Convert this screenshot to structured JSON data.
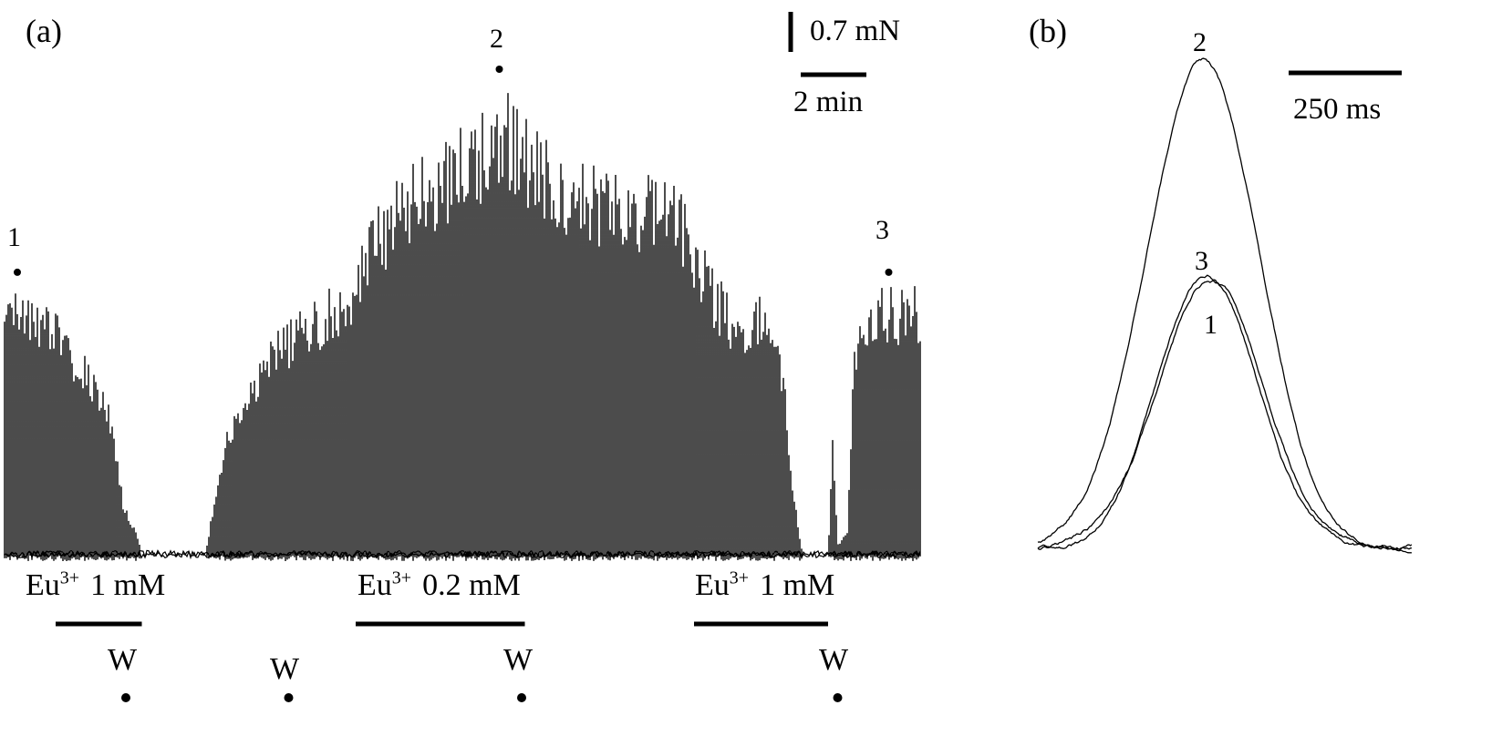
{
  "figure": {
    "panel_a_label": "(a)",
    "panel_b_label": "(b)",
    "colors": {
      "trace": "#000000",
      "background": "#ffffff"
    }
  },
  "panel_a": {
    "scalebar_force": "0.7 mN",
    "scalebar_time": "2 min",
    "point_labels": [
      "1",
      "2",
      "3"
    ],
    "applications": [
      {
        "chem": "Eu",
        "sup": "3+",
        "conc": "1 mM"
      },
      {
        "chem": "Eu",
        "sup": "3+",
        "conc": "0.2 mM"
      },
      {
        "chem": "Eu",
        "sup": "3+",
        "conc": "1 mM"
      }
    ],
    "wash_label": "W"
  },
  "panel_b": {
    "scalebar_time": "250 ms",
    "trace_labels": [
      "2",
      "3",
      "1"
    ]
  },
  "chart_data": [
    {
      "type": "line",
      "panel": "a",
      "title": "Twitch force recording with Eu3+ applications",
      "x_unit": "min",
      "y_unit": "mN",
      "x_range": [
        0,
        28.7
      ],
      "scale_bars": {
        "force_mN": 0.7,
        "time_min": 2
      },
      "baseline_mN": 0,
      "twitch_envelope": {
        "t_min": [
          0.0,
          0.6,
          1.4,
          2.3,
          2.9,
          3.4,
          3.7,
          3.9,
          4.1,
          4.3,
          6.3,
          6.5,
          6.9,
          7.5,
          8.0,
          8.6,
          9.2,
          9.9,
          10.3,
          10.6,
          10.9,
          11.5,
          12.1,
          12.6,
          13.2,
          13.8,
          14.3,
          14.9,
          15.5,
          16.1,
          16.6,
          17.2,
          17.8,
          18.7,
          19.5,
          20.1,
          20.7,
          21.2,
          21.5,
          22.1,
          22.7,
          23.0,
          23.5,
          24.1,
          24.4,
          24.7,
          24.9,
          25.0,
          25.8,
          25.95,
          26.1,
          26.4,
          26.6,
          27.0,
          27.6,
          28.2,
          28.7
        ],
        "amp_mN": [
          5.2,
          5.1,
          4.8,
          4.1,
          3.4,
          2.7,
          1.1,
          0.7,
          0.5,
          0.0,
          0.0,
          0.8,
          2.3,
          3.2,
          3.8,
          4.4,
          4.7,
          5.0,
          5.2,
          5.4,
          5.5,
          6.5,
          7.1,
          7.4,
          7.7,
          8.0,
          8.2,
          8.4,
          9.1,
          8.8,
          8.2,
          7.9,
          7.7,
          7.5,
          7.4,
          7.3,
          7.3,
          7.1,
          6.5,
          5.6,
          5.0,
          4.7,
          5.0,
          5.0,
          3.6,
          1.4,
          0.4,
          0.0,
          0.0,
          2.3,
          0.2,
          0.4,
          4.1,
          5.0,
          5.2,
          5.1,
          5.2
        ]
      },
      "applications": [
        {
          "label": "Eu3+ 1 mM",
          "start_min": 1.6,
          "end_min": 4.3
        },
        {
          "label": "Eu3+ 0.2 mM",
          "start_min": 11.0,
          "end_min": 16.3
        },
        {
          "label": "Eu3+ 1 mM",
          "start_min": 21.6,
          "end_min": 25.8
        }
      ],
      "wash_times_min": [
        3.8,
        8.9,
        16.2,
        26.1
      ],
      "marked_points": [
        {
          "label": "1",
          "t_min": 0.4,
          "amp_mN": 5.2
        },
        {
          "label": "2",
          "t_min": 15.5,
          "amp_mN": 9.1
        },
        {
          "label": "3",
          "t_min": 27.7,
          "amp_mN": 5.2
        }
      ]
    },
    {
      "type": "line",
      "panel": "b",
      "title": "Superimposed single twitches at marked points 1-3",
      "x_unit": "ms",
      "x_range": [
        0,
        840
      ],
      "scale_bar_ms": 250,
      "traces": [
        {
          "name": "2",
          "peak_rel": 1.0,
          "peak_time_ms": 370,
          "sigma_ms": 127
        },
        {
          "name": "3",
          "peak_rel": 0.56,
          "peak_time_ms": 380,
          "sigma_ms": 112
        },
        {
          "name": "1",
          "peak_rel": 0.55,
          "peak_time_ms": 390,
          "sigma_ms": 118
        }
      ]
    }
  ]
}
